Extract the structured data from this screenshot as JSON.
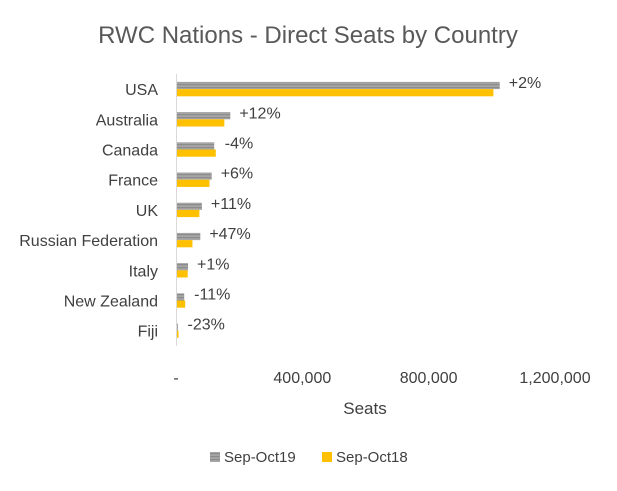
{
  "chart_data": {
    "type": "bar",
    "orientation": "horizontal",
    "title": "RWC Nations - Direct Seats by Country",
    "xlabel": "Seats",
    "ylabel": "",
    "xlim": [
      0,
      1200000
    ],
    "x_ticks": [
      0,
      400000,
      800000,
      1200000
    ],
    "x_tick_labels": [
      "-",
      "400,000",
      "800,000",
      "1,200,000"
    ],
    "grid": false,
    "legend_position": "bottom",
    "categories": [
      "USA",
      "Australia",
      "Canada",
      "France",
      "UK",
      "Russian Federation",
      "Italy",
      "New Zealand",
      "Fiji"
    ],
    "series": [
      {
        "name": "Sep-Oct19",
        "color": "#a6a6a6",
        "pattern": "hatched",
        "values": [
          1025000,
          172000,
          121000,
          113000,
          82000,
          77000,
          38000,
          26000,
          6000
        ]
      },
      {
        "name": "Sep-Oct18",
        "color": "#ffc000",
        "pattern": "solid",
        "values": [
          1005000,
          153000,
          126000,
          106000,
          74000,
          52000,
          37000,
          29000,
          8000
        ]
      }
    ],
    "data_labels": [
      "+2%",
      "+12%",
      "-4%",
      "+6%",
      "+11%",
      "+47%",
      "+1%",
      "-11%",
      "-23%"
    ]
  }
}
